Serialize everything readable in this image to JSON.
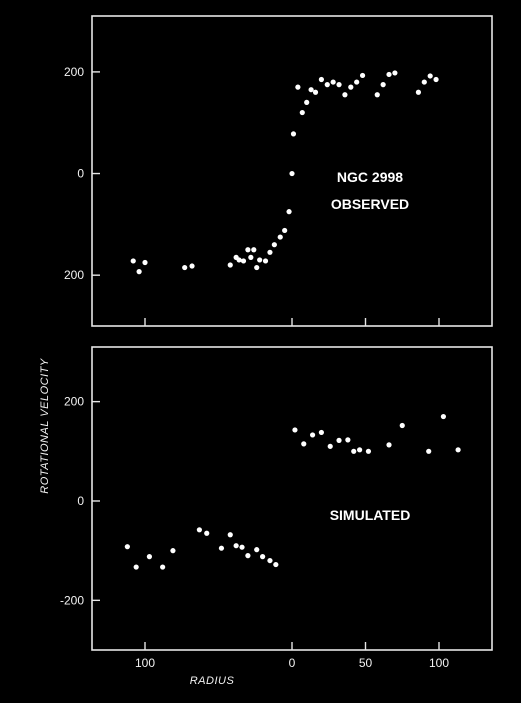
{
  "chart_data": [
    {
      "type": "scatter",
      "annotation": [
        "NGC 2998",
        "OBSERVED"
      ],
      "xlim": [
        -135,
        135
      ],
      "ylim": [
        -300,
        310
      ],
      "x_ticks": [
        {
          "value": -100,
          "label": "100"
        },
        {
          "value": 0,
          "label": "0"
        },
        {
          "value": 50,
          "label": "50"
        },
        {
          "value": 100,
          "label": "100"
        }
      ],
      "y_ticks": [
        {
          "value": 200,
          "label": "200"
        },
        {
          "value": 0,
          "label": "0"
        },
        {
          "value": -200,
          "label": "200"
        }
      ],
      "points": [
        [
          -108,
          -172
        ],
        [
          -104,
          -193
        ],
        [
          -100,
          -175
        ],
        [
          -73,
          -185
        ],
        [
          -68,
          -182
        ],
        [
          -42,
          -180
        ],
        [
          -38,
          -165
        ],
        [
          -36,
          -170
        ],
        [
          -33,
          -172
        ],
        [
          -30,
          -150
        ],
        [
          -28,
          -165
        ],
        [
          -26,
          -150
        ],
        [
          -24,
          -185
        ],
        [
          -22,
          -170
        ],
        [
          -18,
          -172
        ],
        [
          -15,
          -155
        ],
        [
          -12,
          -140
        ],
        [
          -8,
          -125
        ],
        [
          -5,
          -112
        ],
        [
          -2,
          -75
        ],
        [
          0,
          0
        ],
        [
          1,
          78
        ],
        [
          4,
          170
        ],
        [
          7,
          120
        ],
        [
          10,
          140
        ],
        [
          13,
          165
        ],
        [
          16,
          160
        ],
        [
          20,
          185
        ],
        [
          24,
          175
        ],
        [
          28,
          180
        ],
        [
          32,
          175
        ],
        [
          36,
          155
        ],
        [
          40,
          170
        ],
        [
          44,
          180
        ],
        [
          48,
          193
        ],
        [
          58,
          155
        ],
        [
          62,
          175
        ],
        [
          66,
          195
        ],
        [
          70,
          198
        ],
        [
          86,
          160
        ],
        [
          90,
          180
        ],
        [
          94,
          192
        ],
        [
          98,
          185
        ]
      ]
    },
    {
      "type": "scatter",
      "annotation": [
        "SIMULATED"
      ],
      "xlim": [
        -135,
        135
      ],
      "ylim": [
        -300,
        310
      ],
      "xlabel": "RADIUS",
      "ylabel": "ROTATIONAL  VELOCITY",
      "x_ticks": [
        {
          "value": -100,
          "label": "100"
        },
        {
          "value": 0,
          "label": "0"
        },
        {
          "value": 50,
          "label": "50"
        },
        {
          "value": 100,
          "label": "100"
        }
      ],
      "y_ticks": [
        {
          "value": 200,
          "label": "200"
        },
        {
          "value": 0,
          "label": "0"
        },
        {
          "value": -200,
          "label": "-200"
        }
      ],
      "points": [
        [
          -112,
          -92
        ],
        [
          -106,
          -133
        ],
        [
          -97,
          -112
        ],
        [
          -88,
          -133
        ],
        [
          -81,
          -100
        ],
        [
          -63,
          -58
        ],
        [
          -58,
          -65
        ],
        [
          -48,
          -95
        ],
        [
          -42,
          -68
        ],
        [
          -38,
          -90
        ],
        [
          -34,
          -93
        ],
        [
          -30,
          -110
        ],
        [
          -24,
          -98
        ],
        [
          -20,
          -112
        ],
        [
          -15,
          -120
        ],
        [
          -11,
          -128
        ],
        [
          2,
          143
        ],
        [
          8,
          115
        ],
        [
          14,
          133
        ],
        [
          20,
          138
        ],
        [
          26,
          110
        ],
        [
          32,
          122
        ],
        [
          38,
          123
        ],
        [
          42,
          100
        ],
        [
          46,
          103
        ],
        [
          52,
          100
        ],
        [
          66,
          113
        ],
        [
          75,
          152
        ],
        [
          93,
          100
        ],
        [
          103,
          170
        ],
        [
          113,
          103
        ]
      ]
    }
  ]
}
